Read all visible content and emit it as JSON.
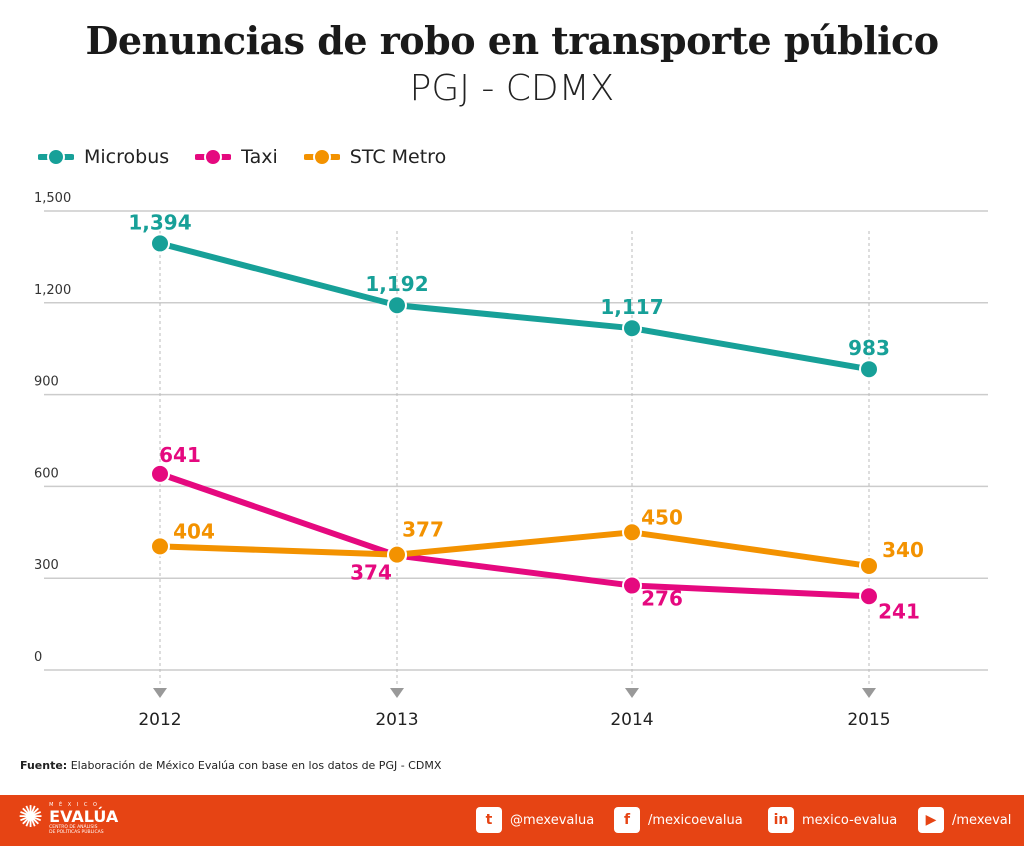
{
  "title": "Denuncias de robo en transporte público",
  "subtitle": "PGJ - CDMX",
  "chart_data": {
    "type": "line",
    "categories": [
      "2012",
      "2013",
      "2014",
      "2015"
    ],
    "ylim": [
      0,
      1500
    ],
    "yticks": [
      "0",
      "300",
      "600",
      "900",
      "1,200",
      "1,500"
    ],
    "ytick_values": [
      0,
      300,
      600,
      900,
      1200,
      1500
    ],
    "grid": true,
    "legend": "top-left",
    "series": [
      {
        "name": "Microbus",
        "color": "#17a098",
        "values": [
          1394,
          1192,
          1117,
          983
        ],
        "labels": [
          "1,394",
          "1,192",
          "1,117",
          "983"
        ]
      },
      {
        "name": "Taxi",
        "color": "#e5097f",
        "values": [
          641,
          374,
          276,
          241
        ],
        "labels": [
          "641",
          "374",
          "276",
          "241"
        ]
      },
      {
        "name": "STC Metro",
        "color": "#f39200",
        "values": [
          404,
          377,
          450,
          340
        ],
        "labels": [
          "404",
          "377",
          "450",
          "340"
        ]
      }
    ]
  },
  "source": {
    "label": "Fuente:",
    "text": " Elaboración de México Evalúa con base en los datos de PGJ - CDMX"
  },
  "footer": {
    "logo_top": "M É X I C O",
    "logo_name": "EVALÚA",
    "logo_sub1": "CENTRO DE ANÁLISIS",
    "logo_sub2": "DE POLÍTICAS PÚBLICAS",
    "social": [
      {
        "icon": "twitter-icon",
        "glyph": "t",
        "label": "@mexevalua"
      },
      {
        "icon": "facebook-icon",
        "glyph": "f",
        "label": "/mexicoevalua"
      },
      {
        "icon": "linkedin-icon",
        "glyph": "in",
        "label": "mexico-evalua"
      },
      {
        "icon": "youtube-icon",
        "glyph": "▶",
        "label": "/mexeval"
      }
    ],
    "color": "#e64414"
  }
}
